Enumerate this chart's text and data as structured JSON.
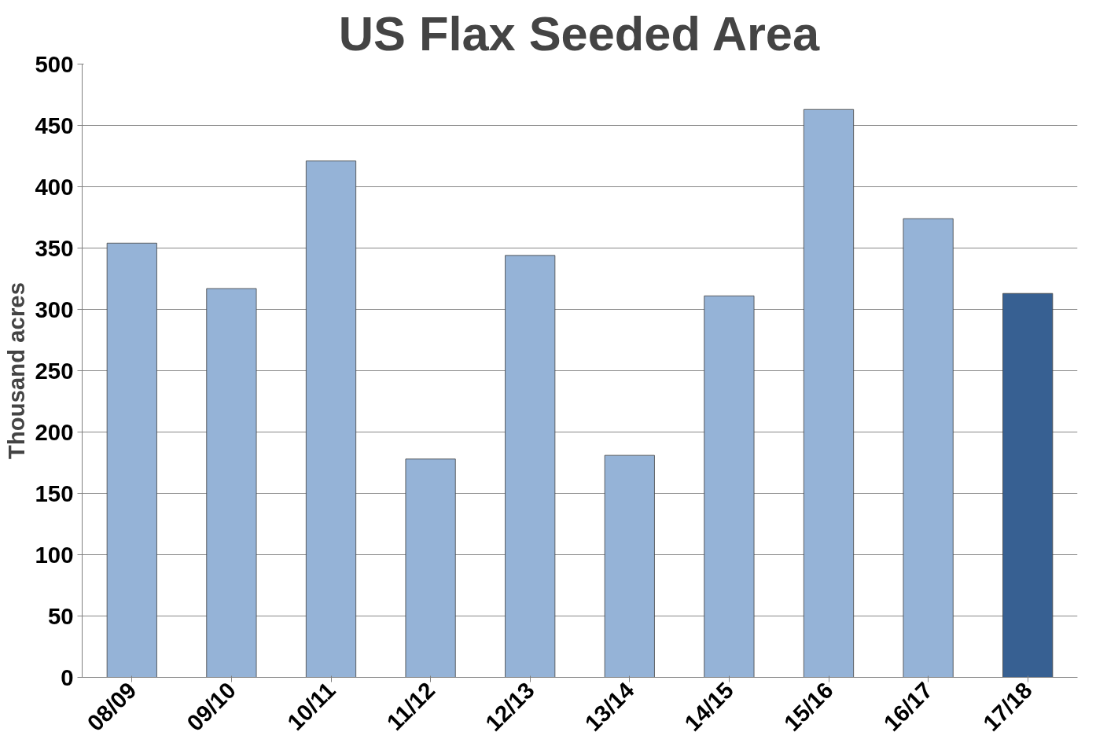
{
  "chart_data": {
    "type": "bar",
    "title": "US Flax Seeded Area",
    "ylabel": "Thousand acres",
    "categories": [
      "08/09",
      "09/10",
      "10/11",
      "11/12",
      "12/13",
      "13/14",
      "14/15",
      "15/16",
      "16/17",
      "17/18"
    ],
    "values": [
      354,
      317,
      421,
      178,
      344,
      181,
      311,
      463,
      374,
      313
    ],
    "colors": [
      "#95b3d7",
      "#95b3d7",
      "#95b3d7",
      "#95b3d7",
      "#95b3d7",
      "#95b3d7",
      "#95b3d7",
      "#95b3d7",
      "#95b3d7",
      "#376092"
    ],
    "ylim": [
      0,
      500
    ],
    "yticks": [
      0,
      50,
      100,
      150,
      200,
      250,
      300,
      350,
      400,
      450,
      500
    ],
    "grid": "y"
  }
}
